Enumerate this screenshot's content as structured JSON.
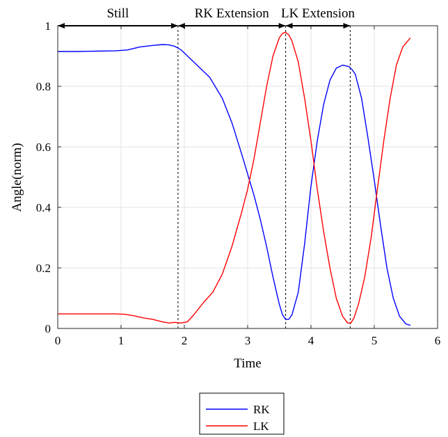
{
  "chart_data": {
    "type": "line",
    "xlabel": "Time",
    "ylabel": "Angle(norm)",
    "xlim": [
      0,
      6
    ],
    "ylim": [
      0,
      1
    ],
    "xticks": [
      "0",
      "1",
      "2",
      "3",
      "4",
      "5",
      "6"
    ],
    "yticks": [
      "0",
      "0.2",
      "0.4",
      "0.6",
      "0.8",
      "1"
    ],
    "grid": true,
    "legend_position": "bottom-center (below plot)",
    "phases": [
      {
        "label": "Still",
        "start": 0,
        "end": 1.9
      },
      {
        "label": "RK Extension",
        "start": 1.9,
        "end": 3.6
      },
      {
        "label": "LK Extension",
        "start": 3.6,
        "end": 4.62
      }
    ],
    "phase_boundaries": [
      1.9,
      3.6,
      4.62
    ],
    "series": [
      {
        "name": "RK",
        "color": "#0000ff",
        "x": [
          0,
          0.3,
          0.6,
          0.9,
          1.1,
          1.3,
          1.5,
          1.65,
          1.75,
          1.85,
          1.95,
          2.05,
          2.2,
          2.4,
          2.6,
          2.75,
          2.9,
          3.0,
          3.1,
          3.2,
          3.3,
          3.4,
          3.5,
          3.55,
          3.6,
          3.65,
          3.7,
          3.8,
          3.9,
          4.0,
          4.1,
          4.2,
          4.3,
          4.4,
          4.5,
          4.6,
          4.65,
          4.7,
          4.8,
          4.9,
          5.0,
          5.1,
          5.2,
          5.3,
          5.4,
          5.5,
          5.57
        ],
        "y": [
          0.915,
          0.915,
          0.916,
          0.917,
          0.92,
          0.93,
          0.935,
          0.938,
          0.937,
          0.932,
          0.92,
          0.9,
          0.87,
          0.83,
          0.76,
          0.68,
          0.58,
          0.51,
          0.44,
          0.36,
          0.27,
          0.17,
          0.08,
          0.045,
          0.03,
          0.03,
          0.045,
          0.12,
          0.28,
          0.47,
          0.62,
          0.74,
          0.82,
          0.86,
          0.87,
          0.865,
          0.855,
          0.84,
          0.76,
          0.63,
          0.49,
          0.34,
          0.2,
          0.1,
          0.04,
          0.015,
          0.01
        ]
      },
      {
        "name": "LK",
        "color": "#ff0000",
        "x": [
          0,
          0.3,
          0.6,
          0.9,
          1.05,
          1.2,
          1.35,
          1.5,
          1.65,
          1.75,
          1.85,
          1.95,
          2.05,
          2.15,
          2.3,
          2.45,
          2.6,
          2.75,
          2.9,
          3.0,
          3.1,
          3.2,
          3.3,
          3.4,
          3.5,
          3.55,
          3.6,
          3.65,
          3.7,
          3.8,
          3.9,
          4.0,
          4.1,
          4.2,
          4.3,
          4.4,
          4.5,
          4.58,
          4.63,
          4.68,
          4.75,
          4.85,
          4.95,
          5.05,
          5.15,
          5.25,
          5.35,
          5.45,
          5.57
        ],
        "y": [
          0.048,
          0.048,
          0.048,
          0.048,
          0.047,
          0.042,
          0.035,
          0.03,
          0.022,
          0.018,
          0.02,
          0.018,
          0.022,
          0.045,
          0.085,
          0.12,
          0.18,
          0.27,
          0.38,
          0.46,
          0.56,
          0.68,
          0.8,
          0.9,
          0.96,
          0.975,
          0.978,
          0.97,
          0.95,
          0.88,
          0.76,
          0.62,
          0.46,
          0.32,
          0.2,
          0.1,
          0.04,
          0.018,
          0.018,
          0.035,
          0.08,
          0.17,
          0.3,
          0.46,
          0.62,
          0.76,
          0.87,
          0.93,
          0.96
        ]
      }
    ]
  }
}
